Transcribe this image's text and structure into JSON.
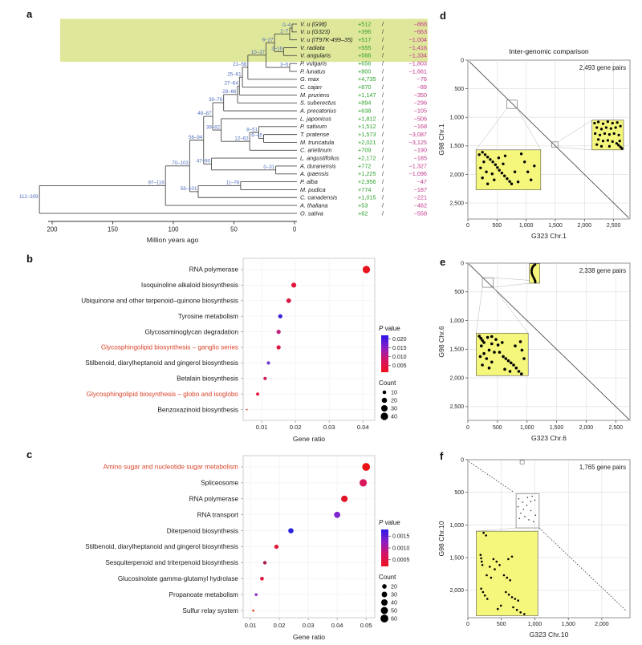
{
  "panels": {
    "a": {
      "letter": "a"
    },
    "b": {
      "letter": "b"
    },
    "c": {
      "letter": "c"
    },
    "d": {
      "letter": "d"
    },
    "e": {
      "letter": "e"
    },
    "f": {
      "letter": "f"
    }
  },
  "colors": {
    "highlight_band": "#dfe79a",
    "node_label": "#4f6fbe",
    "gain": "#2fa12f",
    "loss": "#c2398f",
    "branch": "#4a4a4a",
    "red_label": "#d9442b",
    "inset_yellow": "#f5f67c",
    "grid": "#dcdcdc"
  },
  "chart_data": [
    {
      "panel": "a",
      "type": "phylogenetic-tree",
      "axis": {
        "ticks": [
          200,
          150,
          100,
          50,
          0
        ],
        "label": "Million years ago"
      },
      "gain_loss_separator": "/",
      "root": {
        "label": "112–309",
        "age": 210.5,
        "children": [
          {
            "label": "97–116",
            "age": 106.5,
            "children": [
              {
                "label": "70–103",
                "age": 86.5,
                "children": [
                  {
                    "label": "56–94",
                    "age": 75,
                    "children": [
                      {
                        "label": "48–87",
                        "age": 67.5,
                        "children": [
                          {
                            "label": "39–78",
                            "age": 58.5,
                            "children": [
                              {
                                "label": "28–66",
                                "age": 47,
                                "children": [
                                  {
                                    "label": "27–64",
                                    "age": 45.5,
                                    "children": [
                                      {
                                        "label": "25–61",
                                        "age": 43,
                                        "children": [
                                          {
                                            "label": "21–56",
                                            "age": 38.5,
                                            "children": [
                                              {
                                                "label": "10–37",
                                                "age": 23.5,
                                                "children": [
                                                  {
                                                    "label": "6–27",
                                                    "age": 16.5,
                                                    "children": [
                                                      {
                                                        "label": "1–7",
                                                        "age": 4,
                                                        "children": [
                                                          {
                                                            "label": "0–4",
                                                            "age": 2,
                                                            "children": [
                                                              {
                                                                "name": "V. u (G98)",
                                                                "gain": "+512",
                                                                "loss": "−868",
                                                                "highlight": true
                                                              },
                                                              {
                                                                "name": "V. u (G323)",
                                                                "gain": "+396",
                                                                "loss": "−663",
                                                                "highlight": true
                                                              }
                                                            ]
                                                          },
                                                          {
                                                            "name": "V. u (IT97K-499–35)",
                                                            "gain": "+517",
                                                            "loss": "−1,004",
                                                            "highlight": true
                                                          }
                                                        ]
                                                      },
                                                      {
                                                        "label": "2–16",
                                                        "age": 9,
                                                        "children": [
                                                          {
                                                            "name": "V. radiata",
                                                            "gain": "+555",
                                                            "loss": "−1,416",
                                                            "highlight": true
                                                          },
                                                          {
                                                            "name": "V. angularis",
                                                            "gain": "+566",
                                                            "loss": "−1,334",
                                                            "highlight": true
                                                          }
                                                        ]
                                                      }
                                                    ]
                                                  },
                                                  {
                                                    "label": "3–5",
                                                    "age": 4,
                                                    "children": [
                                                      {
                                                        "name": "P. vulgaris",
                                                        "gain": "+656",
                                                        "loss": "−1,803"
                                                      },
                                                      {
                                                        "name": "P. lunatus",
                                                        "gain": "+800",
                                                        "loss": "−1,661"
                                                      }
                                                    ]
                                                  }
                                                ]
                                              },
                                              {
                                                "name": "G. max",
                                                "gain": "+4,735",
                                                "loss": "−76"
                                              }
                                            ]
                                          },
                                          {
                                            "name": "C. cajan",
                                            "gain": "+870",
                                            "loss": "−89"
                                          }
                                        ]
                                      },
                                      {
                                        "name": "M. pruriens",
                                        "gain": "+1,147",
                                        "loss": "−350"
                                      }
                                    ]
                                  },
                                  {
                                    "name": "S. suberectus",
                                    "gain": "+894",
                                    "loss": "−296"
                                  }
                                ]
                              },
                              {
                                "name": "A. precatorius",
                                "gain": "+638",
                                "loss": "−105"
                              }
                            ]
                          },
                          {
                            "label": "39–82",
                            "age": 60.5,
                            "children": [
                              {
                                "name": "L. japonicus",
                                "gain": "+1,812",
                                "loss": "−506"
                              },
                              {
                                "label": "12–62",
                                "age": 37,
                                "children": [
                                  {
                                    "label": "8–51",
                                    "age": 29.5,
                                    "children": [
                                      {
                                        "name": "P. sativum",
                                        "gain": "+1,512",
                                        "loss": "−168"
                                      },
                                      {
                                        "label": "6–45",
                                        "age": 25.5,
                                        "children": [
                                          {
                                            "name": "T. pratense",
                                            "gain": "+1,573",
                                            "loss": "−3,087"
                                          },
                                          {
                                            "name": "M. truncatula",
                                            "gain": "+2,021",
                                            "loss": "−3,125"
                                          }
                                        ]
                                      }
                                    ]
                                  },
                                  {
                                    "name": "C. arietinum",
                                    "gain": "+709",
                                    "loss": "−190"
                                  }
                                ]
                              }
                            ]
                          }
                        ]
                      },
                      {
                        "label": "47–90",
                        "age": 68.5,
                        "children": [
                          {
                            "name": "L. angustifolius",
                            "gain": "+2,172",
                            "loss": "−185"
                          },
                          {
                            "label": "0–31",
                            "age": 15.5,
                            "children": [
                              {
                                "name": "A. duranensis",
                                "gain": "+772",
                                "loss": "−1,327"
                              },
                              {
                                "name": "A. ipaensis",
                                "gain": "+1,225",
                                "loss": "−1,096"
                              }
                            ]
                          }
                        ]
                      }
                    ]
                  },
                  {
                    "label": "58–101",
                    "age": 79.5,
                    "children": [
                      {
                        "label": "11–78",
                        "age": 44.5,
                        "children": [
                          {
                            "name": "P. alba",
                            "gain": "+2,956",
                            "loss": "−47"
                          },
                          {
                            "name": "M. pudica",
                            "gain": "+774",
                            "loss": "−187"
                          }
                        ]
                      },
                      {
                        "name": "C. canadensis",
                        "gain": "+1,015",
                        "loss": "−221"
                      }
                    ]
                  }
                ]
              },
              {
                "name": "A. thaliana",
                "gain": "+53",
                "loss": "−462"
              }
            ]
          },
          {
            "name": "O. sativa",
            "gain": "+62",
            "loss": "−558"
          }
        ]
      }
    },
    {
      "panel": "b",
      "type": "scatter",
      "xlabel": "Gene ratio",
      "x_ticks": [
        0.01,
        0.02,
        0.03,
        0.04
      ],
      "xlim": [
        0.0045,
        0.0435
      ],
      "r_scale": 0.73,
      "points": [
        {
          "label": "RNA polymerase",
          "x": 0.041,
          "count": 40,
          "color": "#e8121c"
        },
        {
          "label": "Isoquinoline alkaloid biosynthesis",
          "x": 0.0195,
          "count": 18,
          "color": "#e2173c"
        },
        {
          "label": "Ubiquinone and other terpenoid–quinone biosynthesis",
          "x": 0.018,
          "count": 16,
          "color": "#d81945"
        },
        {
          "label": "Tyrosine metabolism",
          "x": 0.0155,
          "count": 13,
          "color": "#3823d8"
        },
        {
          "label": "Glycosaminoglycan degradation",
          "x": 0.015,
          "count": 13,
          "color": "#bb2080"
        },
        {
          "label": "Glycosphingolipid biosynthesis – ganglio series",
          "x": 0.015,
          "count": 13,
          "color": "#d81945",
          "red_label": true
        },
        {
          "label": "Stilbenoid, diarylheptanoid and gingerol biosynthesis",
          "x": 0.012,
          "count": 8,
          "color": "#6e35cc"
        },
        {
          "label": "Betalain biosynthesis",
          "x": 0.011,
          "count": 8,
          "color": "#cf1d55"
        },
        {
          "label": "Glycosphingolipid biosynthesis – globo and isoglobo",
          "x": 0.0088,
          "count": 7,
          "color": "#e2173c",
          "red_label": true
        },
        {
          "label": "Benzoxazinoid biosynthesis",
          "x": 0.0056,
          "count": 2,
          "color": "#e04b28"
        }
      ],
      "legend": {
        "pvalue_title": "P value",
        "pvalue_ticks": [
          "0.020",
          "0.015",
          "0.010",
          "0.005"
        ],
        "gradient": [
          "#2a14e8",
          "#8a1fc4",
          "#d41564",
          "#ee1120"
        ],
        "count_title": "Count",
        "count_items": [
          10,
          20,
          30,
          40
        ]
      }
    },
    {
      "panel": "c",
      "type": "scatter",
      "xlabel": "Gene ratio",
      "x_ticks": [
        0.01,
        0.02,
        0.03,
        0.04,
        0.05
      ],
      "xlim": [
        0.0075,
        0.053
      ],
      "r_scale": 0.63,
      "points": [
        {
          "label": "Amino sugar and nucleotide sugar metabolism",
          "x": 0.05,
          "count": 60,
          "color": "#ea1214",
          "red_label": true
        },
        {
          "label": "Spliceosome",
          "x": 0.049,
          "count": 53,
          "color": "#d8185c"
        },
        {
          "label": "RNA polymerase",
          "x": 0.0425,
          "count": 42,
          "color": "#e31426"
        },
        {
          "label": "RNA transport",
          "x": 0.04,
          "count": 38,
          "color": "#7d27cf"
        },
        {
          "label": "Diterpenoid biosynthesis",
          "x": 0.024,
          "count": 27,
          "color": "#2b23dc"
        },
        {
          "label": "Stilbenoid, diarylheptanoid and gingerol biosynthesis",
          "x": 0.019,
          "count": 18,
          "color": "#e2173c"
        },
        {
          "label": "Sesquiterpenoid and triterpenoid biosynthesis",
          "x": 0.015,
          "count": 12,
          "color": "#a81a52"
        },
        {
          "label": "Glucosinolate gamma-glutamyl hydrolase",
          "x": 0.014,
          "count": 14,
          "color": "#df173f"
        },
        {
          "label": "Propanoate metabolism",
          "x": 0.012,
          "count": 8,
          "color": "#9431c0"
        },
        {
          "label": "Sulfur relay system",
          "x": 0.011,
          "count": 5,
          "color": "#e04b28"
        }
      ],
      "legend": {
        "pvalue_title": "P value",
        "pvalue_ticks": [
          "0.0015",
          "0.0010",
          "0.0005"
        ],
        "gradient": [
          "#2a14e8",
          "#8a1fc4",
          "#d41564",
          "#ee1120"
        ],
        "count_title": "Count",
        "count_items": [
          20,
          30,
          40,
          50,
          60
        ]
      }
    },
    {
      "panel": "d",
      "type": "synteny-dotplot",
      "title": "Inter-genomic comparison",
      "annotation": "2,493 gene pairs",
      "xlabel": "G323 Chr.1",
      "ylabel": "G98 Chr.1",
      "ticks": [
        0,
        500,
        1000,
        1500,
        2000,
        2500
      ],
      "max": 2780
    },
    {
      "panel": "e",
      "type": "synteny-dotplot",
      "title": "",
      "annotation": "2,338 gene pairs",
      "xlabel": "G323 Chr.6",
      "ylabel": "G98 Chr.6",
      "ticks": [
        0,
        500,
        1000,
        1500,
        2000,
        2500
      ],
      "max": 2740
    },
    {
      "panel": "f",
      "type": "synteny-dotplot",
      "title": "",
      "annotation": "1,765 gene pairs",
      "xlabel": "G323 Chr.10",
      "ylabel": "G98 Chr.10",
      "ticks": [
        0,
        500,
        1000,
        1500,
        2000
      ],
      "max": 2420
    }
  ]
}
